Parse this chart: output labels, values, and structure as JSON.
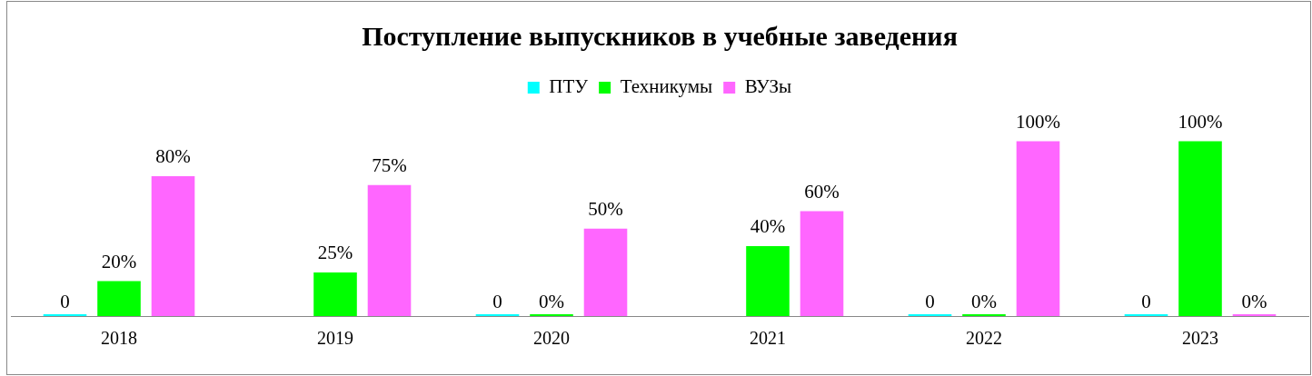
{
  "chart_data": {
    "type": "bar",
    "title": "Поступление выпускников в учебные заведения",
    "categories": [
      "2018",
      "2019",
      "2020",
      "2021",
      "2022",
      "2023"
    ],
    "legend": "top",
    "series": [
      {
        "name": "ПТУ",
        "color": "#00ffff",
        "values": [
          0,
          null,
          0,
          null,
          0,
          0
        ],
        "value_labels": [
          "0",
          null,
          "0",
          null,
          "0",
          "0"
        ]
      },
      {
        "name": "Техникумы",
        "color": "#00ff00",
        "values": [
          20,
          25,
          0,
          40,
          0,
          100
        ],
        "value_labels": [
          "20%",
          "25%",
          "0%",
          "40%",
          "0%",
          "100%"
        ]
      },
      {
        "name": "ВУЗы",
        "color": "#ff66ff",
        "values": [
          80,
          75,
          50,
          60,
          100,
          0
        ],
        "value_labels": [
          "80%",
          "75%",
          "50%",
          "60%",
          "100%",
          "0%"
        ]
      }
    ]
  }
}
